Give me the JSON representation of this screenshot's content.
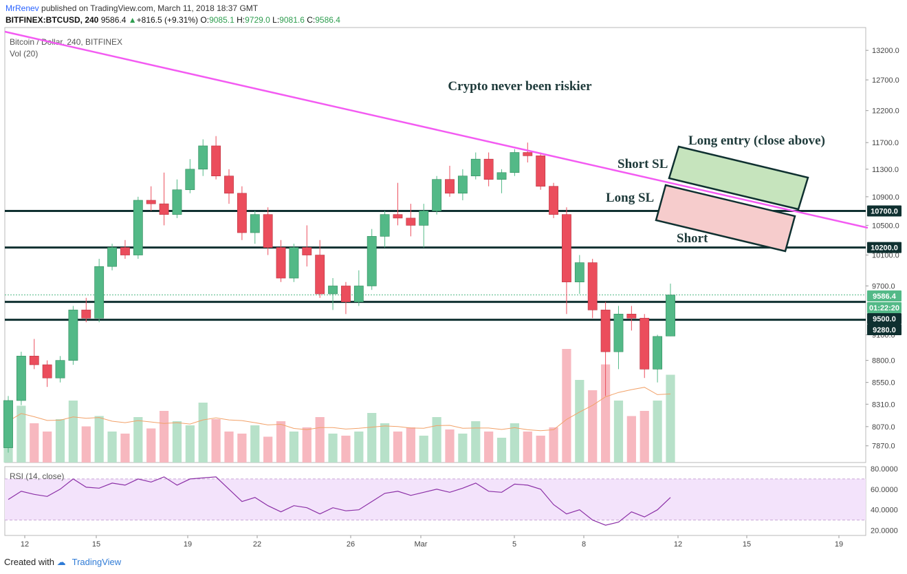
{
  "header": {
    "user": "MrRenev",
    "published": "published on TradingView.com, March 11, 2018 18:37 GMT",
    "symbol": "BITFINEX:BTCUSD, 240",
    "last": "9586.4",
    "change": "+816.5 (+9.31%)",
    "o_label": "O:",
    "o": "9085.1",
    "h_label": "H:",
    "h": "9729.0",
    "l_label": "L:",
    "l": "9081.6",
    "c_label": "C:",
    "c": "9586.4"
  },
  "footer": {
    "created_with": "Created with",
    "brand": "TradingView"
  },
  "colors": {
    "up": "#53b987",
    "down": "#eb4d5c",
    "vol_up": "#b7e1c9",
    "vol_down": "#f7b8bf",
    "trendline": "#f35bf2",
    "level": "#0f3030",
    "rsi_line": "#8b2fa6",
    "rsi_band": "#f3e3fb",
    "vol_ma": "#f2a168",
    "long_box": "#c6e4bd",
    "short_box": "#f6cccc"
  },
  "chart_data": [
    {
      "type": "candlestick",
      "pane": "price",
      "title": "Bitcoin / Dollar, 240, BITFINEX",
      "subtitle": "Vol (20)",
      "annotation": "Crypto never been riskier",
      "x_tick_labels": [
        "12",
        "15",
        "19",
        "22",
        "26",
        "Mar",
        "5",
        "8",
        "12",
        "15",
        "19"
      ],
      "y_tick_labels": [
        "13200.0",
        "12700.0",
        "12200.0",
        "11700.0",
        "11300.0",
        "10900.0",
        "10500.0",
        "10100.0",
        "9700.0",
        "9100.0",
        "8800.0",
        "8550.0",
        "8310.0",
        "8070.0",
        "7870.0"
      ],
      "ylim": [
        7700,
        13600
      ],
      "scale": "log",
      "price_markers": [
        {
          "label": "10700.0",
          "value": 10700,
          "style": "level"
        },
        {
          "label": "10200.0",
          "value": 10200,
          "style": "level"
        },
        {
          "label": "9586.4",
          "value": 9586.4,
          "style": "last"
        },
        {
          "label": "01:22:20",
          "value": 9500,
          "style": "timer"
        },
        {
          "label": "9500.0",
          "value": 9500,
          "style": "level"
        },
        {
          "label": "9280.0",
          "value": 9280,
          "style": "level"
        }
      ],
      "horizontal_levels": [
        10700,
        10200,
        9500,
        9280
      ],
      "last_price": 9586.4,
      "trendline": {
        "points": [
          {
            "x": "Feb 8",
            "y": 13500
          },
          {
            "x": "Mar 5",
            "y": 11720
          }
        ]
      },
      "boxes": [
        {
          "name": "long-entry",
          "label": "Long entry (close above)",
          "price_top": 11720,
          "price_bottom": 10760
        },
        {
          "name": "short",
          "label": "Short",
          "price_top": 11050,
          "price_bottom": 10150
        }
      ],
      "text_labels": [
        "Short SL",
        "Long SL"
      ],
      "ohlc": [
        [
          7850,
          8400,
          7800,
          8350
        ],
        [
          8350,
          8900,
          8300,
          8850
        ],
        [
          8850,
          9050,
          8700,
          8750
        ],
        [
          8750,
          8800,
          8500,
          8600
        ],
        [
          8600,
          8850,
          8550,
          8800
        ],
        [
          8800,
          9450,
          8750,
          9400
        ],
        [
          9400,
          9550,
          9250,
          9300
        ],
        [
          9300,
          10050,
          9250,
          9950
        ],
        [
          9950,
          10250,
          9900,
          10200
        ],
        [
          10200,
          10300,
          10050,
          10100
        ],
        [
          10100,
          10900,
          10050,
          10850
        ],
        [
          10850,
          11050,
          10700,
          10800
        ],
        [
          10800,
          11250,
          10500,
          10650
        ],
        [
          10650,
          11150,
          10600,
          11000
        ],
        [
          11000,
          11450,
          10950,
          11300
        ],
        [
          11300,
          11750,
          11200,
          11650
        ],
        [
          11650,
          11800,
          11150,
          11200
        ],
        [
          11200,
          11300,
          10800,
          10950
        ],
        [
          10950,
          11050,
          10300,
          10400
        ],
        [
          10400,
          10700,
          10250,
          10650
        ],
        [
          10650,
          10750,
          10100,
          10200
        ],
        [
          10200,
          10300,
          9750,
          9800
        ],
        [
          9800,
          10250,
          9750,
          10200
        ],
        [
          10200,
          10500,
          9950,
          10100
        ],
        [
          10100,
          10300,
          9550,
          9600
        ],
        [
          9600,
          9800,
          9400,
          9700
        ],
        [
          9700,
          9750,
          9350,
          9500
        ],
        [
          9500,
          9900,
          9450,
          9700
        ],
        [
          9700,
          10450,
          9650,
          10350
        ],
        [
          10350,
          10700,
          10200,
          10650
        ],
        [
          10650,
          11100,
          10500,
          10600
        ],
        [
          10600,
          10800,
          10350,
          10500
        ],
        [
          10500,
          10800,
          10200,
          10700
        ],
        [
          10700,
          11200,
          10650,
          11150
        ],
        [
          11150,
          11350,
          10900,
          10950
        ],
        [
          10950,
          11300,
          10850,
          11200
        ],
        [
          11200,
          11550,
          11150,
          11450
        ],
        [
          11450,
          11550,
          11050,
          11150
        ],
        [
          11150,
          11300,
          10950,
          11250
        ],
        [
          11250,
          11600,
          11200,
          11550
        ],
        [
          11550,
          11700,
          11400,
          11500
        ],
        [
          11500,
          11550,
          11000,
          11050
        ],
        [
          11050,
          11100,
          10600,
          10650
        ],
        [
          10650,
          10750,
          9350,
          9750
        ],
        [
          9750,
          10100,
          9600,
          10000
        ],
        [
          10000,
          10050,
          9300,
          9400
        ],
        [
          9400,
          9500,
          8400,
          8900
        ],
        [
          8900,
          9450,
          8700,
          9350
        ],
        [
          9350,
          9450,
          9150,
          9300
        ],
        [
          9300,
          9350,
          8600,
          8700
        ],
        [
          8700,
          9100,
          8550,
          9080
        ],
        [
          9085,
          9729,
          9081.6,
          9586.4
        ]
      ]
    },
    {
      "type": "bar",
      "pane": "volume",
      "title": "Vol (20)",
      "values": [
        40,
        55,
        38,
        30,
        42,
        60,
        35,
        45,
        30,
        28,
        44,
        33,
        50,
        40,
        36,
        58,
        42,
        30,
        28,
        36,
        25,
        40,
        30,
        34,
        44,
        28,
        26,
        30,
        48,
        38,
        30,
        34,
        26,
        44,
        32,
        28,
        40,
        30,
        24,
        38,
        30,
        26,
        34,
        110,
        80,
        70,
        95,
        60,
        45,
        50,
        60,
        85
      ]
    },
    {
      "type": "line",
      "pane": "rsi",
      "title": "RSI (14, close)",
      "y_tick_labels": [
        "80.0000",
        "60.0000",
        "40.0000",
        "20.0000"
      ],
      "ylim": [
        15,
        82
      ],
      "band": [
        30,
        70
      ],
      "values": [
        50,
        58,
        55,
        53,
        60,
        70,
        62,
        61,
        66,
        64,
        70,
        67,
        72,
        64,
        70,
        71,
        72,
        60,
        48,
        52,
        44,
        38,
        44,
        42,
        36,
        42,
        39,
        40,
        48,
        56,
        58,
        54,
        57,
        60,
        57,
        61,
        66,
        58,
        57,
        65,
        64,
        60,
        45,
        36,
        40,
        30,
        25,
        28,
        38,
        33,
        40,
        52
      ]
    }
  ]
}
